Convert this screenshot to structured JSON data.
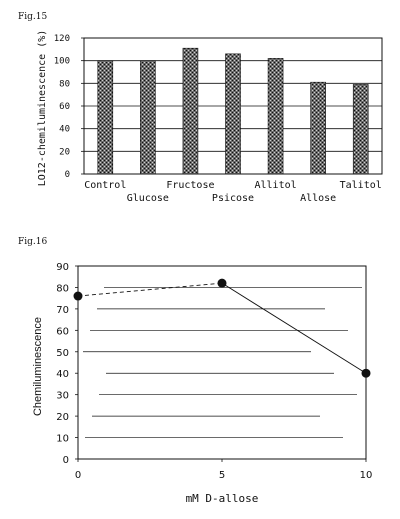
{
  "figures": {
    "fig15_label": "Fig.15",
    "fig16_label": "Fig.16"
  },
  "colors": {
    "ink": "#111111",
    "bar_fill": "#555555",
    "grid": "#111111"
  },
  "chart_data": [
    {
      "type": "bar",
      "title": "",
      "ylabel": "LO12-chemiluminescence (%)",
      "xlabel": "",
      "categories": [
        "Control",
        "Glucose",
        "Fructose",
        "Psicose",
        "Allitol",
        "Allose",
        "Talitol"
      ],
      "values": [
        100,
        100,
        111,
        106,
        102,
        81,
        79
      ],
      "ylim": [
        0,
        120
      ],
      "yticks": [
        0,
        20,
        40,
        60,
        80,
        100,
        120
      ],
      "grid": true,
      "bar_pattern": "stippled"
    },
    {
      "type": "line",
      "title": "",
      "ylabel": "Chemiluminescence",
      "xlabel": "mM D-allose",
      "x": [
        0,
        5,
        10
      ],
      "y": [
        76,
        82,
        40
      ],
      "xlim": [
        0,
        10
      ],
      "ylim": [
        0,
        90
      ],
      "xticks": [
        0,
        5,
        10
      ],
      "yticks": [
        0,
        10,
        20,
        30,
        40,
        50,
        60,
        70,
        80,
        90
      ],
      "grid": true,
      "segment_styles": [
        "dashed",
        "solid"
      ]
    }
  ]
}
